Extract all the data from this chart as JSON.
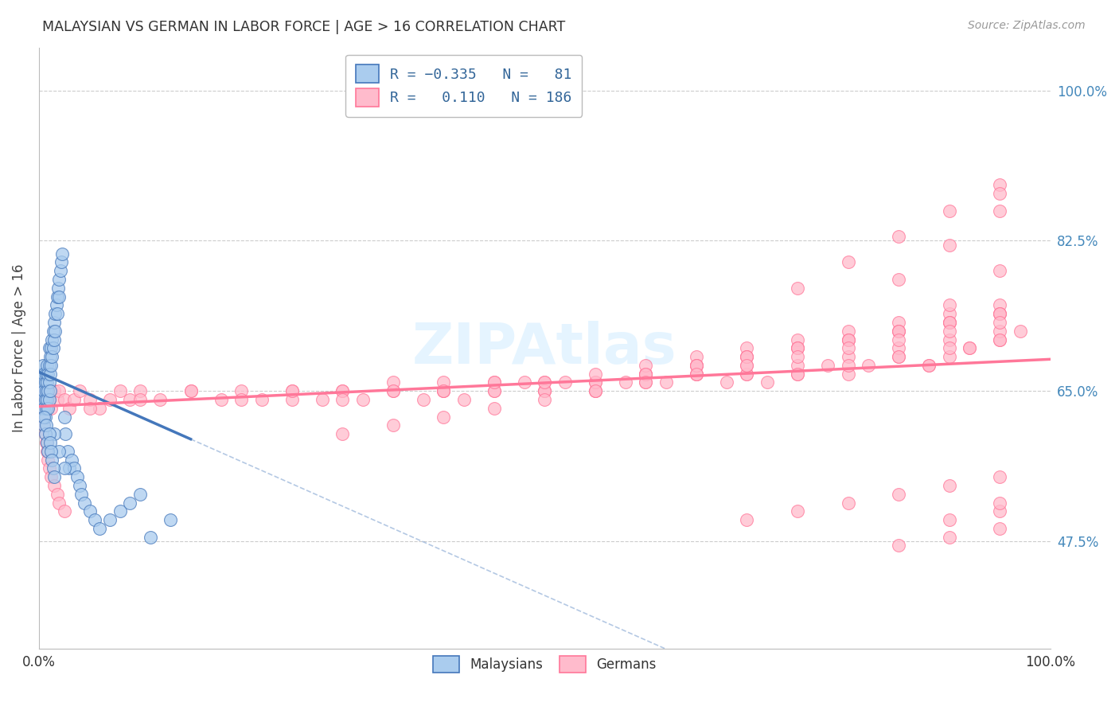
{
  "title": "MALAYSIAN VS GERMAN IN LABOR FORCE | AGE > 16 CORRELATION CHART",
  "source": "Source: ZipAtlas.com",
  "ylabel": "In Labor Force | Age > 16",
  "yticklabels": [
    "47.5%",
    "65.0%",
    "82.5%",
    "100.0%"
  ],
  "yticks": [
    0.475,
    0.65,
    0.825,
    1.0
  ],
  "xlim": [
    0.0,
    1.0
  ],
  "ylim": [
    0.35,
    1.05
  ],
  "blue_color": "#4477BB",
  "pink_color": "#FF7799",
  "blue_fill": "#AACCEE",
  "pink_fill": "#FFBBCC",
  "grid_color": "#CCCCCC",
  "background_color": "#FFFFFF",
  "blue_trend_solid_end": 0.15,
  "blue_trend_start_x": 0.0,
  "blue_trend_start_y": 0.672,
  "blue_trend_slope": -0.52,
  "pink_trend_start_y": 0.632,
  "pink_trend_slope": 0.055,
  "blue_scatter_x": [
    0.002,
    0.003,
    0.003,
    0.004,
    0.004,
    0.004,
    0.005,
    0.005,
    0.005,
    0.005,
    0.006,
    0.006,
    0.006,
    0.007,
    0.007,
    0.007,
    0.008,
    0.008,
    0.008,
    0.009,
    0.009,
    0.009,
    0.01,
    0.01,
    0.01,
    0.01,
    0.011,
    0.011,
    0.011,
    0.012,
    0.012,
    0.013,
    0.013,
    0.014,
    0.014,
    0.015,
    0.015,
    0.016,
    0.016,
    0.017,
    0.018,
    0.018,
    0.019,
    0.02,
    0.02,
    0.021,
    0.022,
    0.023,
    0.025,
    0.026,
    0.028,
    0.03,
    0.032,
    0.035,
    0.038,
    0.04,
    0.042,
    0.045,
    0.05,
    0.055,
    0.06,
    0.07,
    0.08,
    0.09,
    0.1,
    0.11,
    0.13,
    0.015,
    0.02,
    0.025,
    0.005,
    0.006,
    0.007,
    0.008,
    0.009,
    0.01,
    0.011,
    0.012,
    0.013,
    0.014,
    0.015
  ],
  "blue_scatter_y": [
    0.65,
    0.67,
    0.63,
    0.66,
    0.64,
    0.68,
    0.65,
    0.67,
    0.63,
    0.61,
    0.66,
    0.64,
    0.62,
    0.67,
    0.65,
    0.63,
    0.68,
    0.66,
    0.64,
    0.67,
    0.65,
    0.63,
    0.7,
    0.68,
    0.66,
    0.64,
    0.69,
    0.67,
    0.65,
    0.7,
    0.68,
    0.71,
    0.69,
    0.72,
    0.7,
    0.73,
    0.71,
    0.74,
    0.72,
    0.75,
    0.76,
    0.74,
    0.77,
    0.78,
    0.76,
    0.79,
    0.8,
    0.81,
    0.62,
    0.6,
    0.58,
    0.56,
    0.57,
    0.56,
    0.55,
    0.54,
    0.53,
    0.52,
    0.51,
    0.5,
    0.49,
    0.5,
    0.51,
    0.52,
    0.53,
    0.48,
    0.5,
    0.6,
    0.58,
    0.56,
    0.62,
    0.6,
    0.61,
    0.59,
    0.58,
    0.6,
    0.59,
    0.58,
    0.57,
    0.56,
    0.55
  ],
  "pink_scatter_x": [
    0.002,
    0.003,
    0.004,
    0.005,
    0.006,
    0.007,
    0.008,
    0.009,
    0.01,
    0.012,
    0.015,
    0.018,
    0.02,
    0.025,
    0.03,
    0.035,
    0.04,
    0.05,
    0.06,
    0.07,
    0.08,
    0.09,
    0.1,
    0.12,
    0.15,
    0.18,
    0.2,
    0.22,
    0.25,
    0.28,
    0.3,
    0.32,
    0.35,
    0.38,
    0.4,
    0.42,
    0.45,
    0.48,
    0.5,
    0.52,
    0.55,
    0.58,
    0.6,
    0.62,
    0.65,
    0.68,
    0.7,
    0.72,
    0.75,
    0.78,
    0.8,
    0.82,
    0.85,
    0.88,
    0.9,
    0.92,
    0.95,
    0.97,
    0.25,
    0.3,
    0.35,
    0.4,
    0.45,
    0.5,
    0.55,
    0.6,
    0.65,
    0.7,
    0.75,
    0.8,
    0.85,
    0.9,
    0.95,
    0.05,
    0.1,
    0.15,
    0.2,
    0.25,
    0.3,
    0.35,
    0.4,
    0.45,
    0.5,
    0.55,
    0.6,
    0.65,
    0.7,
    0.75,
    0.8,
    0.85,
    0.9,
    0.95,
    0.4,
    0.45,
    0.5,
    0.55,
    0.6,
    0.65,
    0.7,
    0.75,
    0.8,
    0.85,
    0.9,
    0.95,
    0.5,
    0.55,
    0.6,
    0.65,
    0.7,
    0.75,
    0.8,
    0.85,
    0.9,
    0.95,
    0.6,
    0.65,
    0.7,
    0.75,
    0.8,
    0.85,
    0.9,
    0.95,
    0.65,
    0.7,
    0.75,
    0.8,
    0.85,
    0.9,
    0.95,
    0.75,
    0.8,
    0.85,
    0.9,
    0.95,
    0.85,
    0.9,
    0.95,
    0.9,
    0.95,
    0.95,
    0.003,
    0.004,
    0.005,
    0.006,
    0.007,
    0.008,
    0.009,
    0.01,
    0.012,
    0.015,
    0.018,
    0.02,
    0.025,
    0.3,
    0.35,
    0.4,
    0.45,
    0.5,
    0.55,
    0.6,
    0.65,
    0.7,
    0.75,
    0.8,
    0.85,
    0.9,
    0.95,
    0.7,
    0.75,
    0.8,
    0.85,
    0.9,
    0.95,
    0.85,
    0.9,
    0.95,
    0.9,
    0.95,
    0.95,
    0.88,
    0.92
  ],
  "pink_scatter_y": [
    0.64,
    0.65,
    0.64,
    0.63,
    0.65,
    0.64,
    0.63,
    0.65,
    0.64,
    0.63,
    0.65,
    0.64,
    0.65,
    0.64,
    0.63,
    0.64,
    0.65,
    0.64,
    0.63,
    0.64,
    0.65,
    0.64,
    0.65,
    0.64,
    0.65,
    0.64,
    0.65,
    0.64,
    0.65,
    0.64,
    0.65,
    0.64,
    0.65,
    0.64,
    0.65,
    0.64,
    0.65,
    0.66,
    0.65,
    0.66,
    0.65,
    0.66,
    0.67,
    0.66,
    0.67,
    0.66,
    0.67,
    0.66,
    0.67,
    0.68,
    0.67,
    0.68,
    0.69,
    0.68,
    0.69,
    0.7,
    0.71,
    0.72,
    0.64,
    0.65,
    0.66,
    0.65,
    0.66,
    0.65,
    0.66,
    0.67,
    0.68,
    0.67,
    0.68,
    0.69,
    0.7,
    0.71,
    0.72,
    0.63,
    0.64,
    0.65,
    0.64,
    0.65,
    0.64,
    0.65,
    0.66,
    0.65,
    0.66,
    0.65,
    0.66,
    0.67,
    0.68,
    0.67,
    0.68,
    0.69,
    0.7,
    0.71,
    0.65,
    0.66,
    0.65,
    0.66,
    0.67,
    0.68,
    0.69,
    0.7,
    0.71,
    0.72,
    0.73,
    0.74,
    0.66,
    0.67,
    0.68,
    0.69,
    0.7,
    0.71,
    0.72,
    0.73,
    0.74,
    0.75,
    0.67,
    0.68,
    0.69,
    0.7,
    0.71,
    0.72,
    0.73,
    0.74,
    0.68,
    0.69,
    0.7,
    0.71,
    0.72,
    0.73,
    0.74,
    0.77,
    0.8,
    0.83,
    0.86,
    0.89,
    0.78,
    0.82,
    0.88,
    0.75,
    0.79,
    0.86,
    0.63,
    0.62,
    0.61,
    0.6,
    0.59,
    0.58,
    0.57,
    0.56,
    0.55,
    0.54,
    0.53,
    0.52,
    0.51,
    0.6,
    0.61,
    0.62,
    0.63,
    0.64,
    0.65,
    0.66,
    0.67,
    0.68,
    0.69,
    0.7,
    0.71,
    0.72,
    0.73,
    0.5,
    0.51,
    0.52,
    0.53,
    0.54,
    0.55,
    0.47,
    0.48,
    0.49,
    0.5,
    0.51,
    0.52,
    0.68,
    0.7
  ]
}
